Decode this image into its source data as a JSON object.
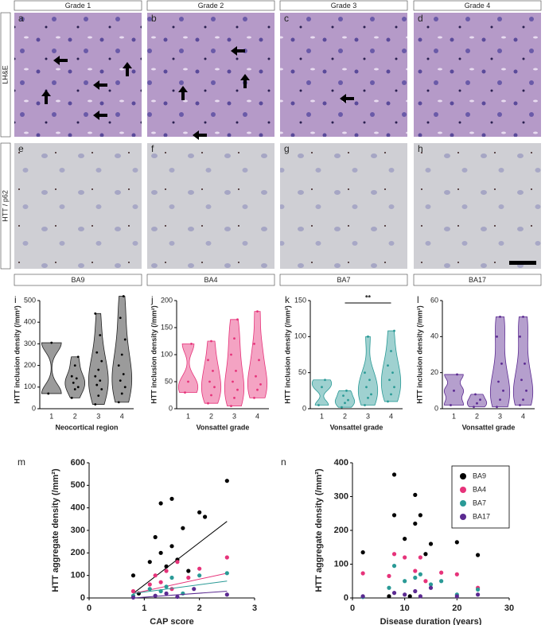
{
  "panels": {
    "column_headers": [
      "Grade 1",
      "Grade 2",
      "Grade 3",
      "Grade 4"
    ],
    "row_labels": [
      "LH&E",
      "HTT / p62"
    ],
    "letters": [
      "a",
      "b",
      "c",
      "d",
      "e",
      "f",
      "g",
      "h"
    ]
  },
  "chart_data": [
    {
      "type": "violin",
      "panel_label": "i",
      "title": "BA9",
      "color": "#222222",
      "ylabel": "HTT inclusion density (/mm²)",
      "xlabel": "Neocortical region",
      "categories": [
        "1",
        "2",
        "3",
        "4"
      ],
      "groups": [
        [
          70,
          305
        ],
        [
          50,
          90,
          100,
          120,
          140,
          150,
          200,
          240
        ],
        [
          20,
          60,
          90,
          110,
          130,
          150,
          180,
          220,
          260,
          340,
          440
        ],
        [
          30,
          70,
          100,
          130,
          160,
          200,
          250,
          320,
          420,
          520
        ]
      ],
      "ylim": [
        0,
        500
      ],
      "yticks": [
        0,
        100,
        200,
        300,
        400,
        500
      ]
    },
    {
      "type": "violin",
      "panel_label": "j",
      "title": "BA4",
      "color": "#e6337a",
      "ylabel": "HTT inclusion density (/mm²)",
      "xlabel": "Vonsattel grade",
      "categories": [
        "1",
        "2",
        "3",
        "4"
      ],
      "groups": [
        [
          30,
          50,
          120
        ],
        [
          10,
          25,
          40,
          50,
          70,
          90,
          125
        ],
        [
          5,
          20,
          35,
          50,
          70,
          100,
          130,
          165
        ],
        [
          20,
          35,
          45,
          60,
          90,
          120,
          180
        ]
      ],
      "ylim": [
        0,
        200
      ],
      "yticks": [
        0,
        50,
        100,
        150,
        200
      ]
    },
    {
      "type": "violin",
      "panel_label": "k",
      "title": "BA7",
      "color": "#2a9a96",
      "ylabel": "HTT inclusion density (/mm²)",
      "xlabel": "Vonsattel grade",
      "categories": [
        "1",
        "2",
        "3",
        "4"
      ],
      "groups": [
        [
          5,
          30,
          40
        ],
        [
          2,
          8,
          12,
          18,
          25
        ],
        [
          5,
          15,
          20,
          30,
          40,
          50,
          100
        ],
        [
          10,
          20,
          30,
          40,
          50,
          60,
          80,
          108
        ]
      ],
      "ylim": [
        0,
        150
      ],
      "yticks": [
        0,
        50,
        100,
        150
      ],
      "annotation": "**"
    },
    {
      "type": "violin",
      "panel_label": "l",
      "title": "BA17",
      "color": "#5b2a91",
      "ylabel": "HTT inclusion density (/mm²)",
      "xlabel": "Vonsattel grade",
      "categories": [
        "1",
        "2",
        "3",
        "4"
      ],
      "groups": [
        [
          2,
          10,
          19
        ],
        [
          1,
          3,
          5,
          8
        ],
        [
          1,
          5,
          10,
          15,
          25,
          40,
          51
        ],
        [
          2,
          5,
          10,
          16,
          25,
          40,
          51
        ]
      ],
      "ylim": [
        0,
        60
      ],
      "yticks": [
        0,
        20,
        40,
        60
      ]
    },
    {
      "type": "scatter",
      "panel_label": "m",
      "xlabel": "CAP score",
      "ylabel": "HTT aggregate density (/mm²)",
      "xlim": [
        0,
        3
      ],
      "xticks": [
        0,
        1,
        2,
        3
      ],
      "ylim": [
        0,
        600
      ],
      "yticks": [
        0,
        100,
        200,
        300,
        400,
        500,
        600
      ],
      "series": [
        {
          "name": "BA9",
          "color": "#000000",
          "x": [
            0.8,
            0.9,
            1.1,
            1.2,
            1.3,
            1.3,
            1.4,
            1.5,
            1.5,
            1.6,
            1.7,
            1.8,
            2.0,
            2.1,
            2.5
          ],
          "values": [
            100,
            20,
            160,
            270,
            420,
            200,
            140,
            440,
            230,
            170,
            310,
            120,
            380,
            360,
            520
          ],
          "trendline": {
            "x": [
              0.8,
              2.5
            ],
            "y": [
              20,
              340
            ]
          }
        },
        {
          "name": "BA4",
          "color": "#e6337a",
          "x": [
            0.8,
            1.1,
            1.2,
            1.3,
            1.4,
            1.5,
            1.6,
            1.8,
            2.0,
            2.5
          ],
          "values": [
            30,
            60,
            100,
            70,
            120,
            40,
            160,
            90,
            130,
            180
          ],
          "trendline": {
            "x": [
              0.8,
              2.5
            ],
            "y": [
              20,
              110
            ]
          }
        },
        {
          "name": "BA7",
          "color": "#2a9a96",
          "x": [
            0.8,
            1.1,
            1.3,
            1.4,
            1.5,
            1.7,
            2.0,
            2.5
          ],
          "values": [
            10,
            40,
            30,
            50,
            90,
            20,
            100,
            110
          ],
          "trendline": {
            "x": [
              0.8,
              2.5
            ],
            "y": [
              20,
              75
            ]
          }
        },
        {
          "name": "BA17",
          "color": "#5b2a91",
          "x": [
            0.8,
            1.2,
            1.4,
            1.6,
            1.9,
            2.5
          ],
          "values": [
            2,
            10,
            20,
            5,
            40,
            15
          ],
          "trendline": {
            "x": [
              0.8,
              2.5
            ],
            "y": [
              0,
              30
            ]
          }
        }
      ]
    },
    {
      "type": "scatter",
      "panel_label": "n",
      "xlabel": "Disease duration (years)",
      "ylabel": "HTT aggregate density (/mm²)",
      "xlim": [
        0,
        30
      ],
      "xticks": [
        0,
        10,
        20,
        30
      ],
      "ylim": [
        0,
        400
      ],
      "yticks": [
        0,
        100,
        200,
        300,
        400
      ],
      "legend": "upper right",
      "series": [
        {
          "name": "BA9",
          "color": "#000000",
          "x": [
            2,
            7,
            8,
            8,
            10,
            11,
            12,
            12,
            13,
            14,
            15,
            20,
            24
          ],
          "values": [
            135,
            5,
            365,
            245,
            175,
            5,
            305,
            220,
            245,
            130,
            160,
            165,
            127
          ]
        },
        {
          "name": "BA4",
          "color": "#e6337a",
          "x": [
            2,
            7,
            8,
            10,
            12,
            13,
            14,
            17,
            20,
            24
          ],
          "values": [
            73,
            65,
            130,
            120,
            80,
            120,
            50,
            75,
            70,
            30
          ]
        },
        {
          "name": "BA7",
          "color": "#2a9a96",
          "x": [
            2,
            7,
            8,
            10,
            12,
            13,
            15,
            17,
            20,
            24
          ],
          "values": [
            3,
            30,
            95,
            50,
            60,
            70,
            40,
            50,
            10,
            25
          ]
        },
        {
          "name": "BA17",
          "color": "#5b2a91",
          "x": [
            2,
            8,
            10,
            12,
            13,
            15,
            20,
            24
          ],
          "values": [
            5,
            15,
            10,
            20,
            5,
            30,
            5,
            10
          ]
        }
      ]
    }
  ]
}
